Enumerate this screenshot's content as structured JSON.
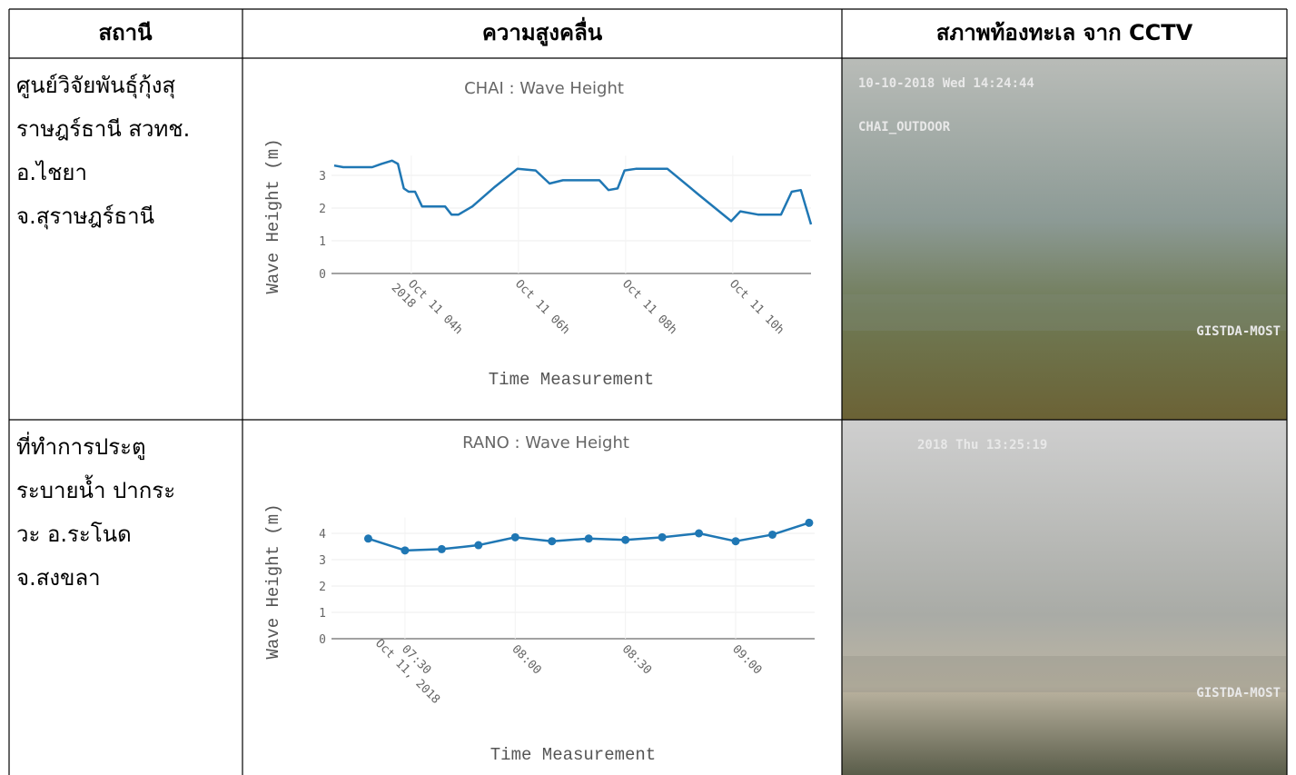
{
  "table": {
    "header": [
      "สถานี",
      "ความสูงคลื่น",
      "สภาพท้องทะเล จาก CCTV"
    ],
    "rows": [
      {
        "station": [
          "ศูนย์วิจัยพันธุ์กุ้งสุ",
          "ราษฎร์ธานี สวทช.",
          "อ.ไชยา",
          "จ.สุราษฎร์ธานี"
        ],
        "chart": {
          "type": "line",
          "title": "CHAI : Wave Height",
          "y_label": "Wave Height (m)",
          "x_label": "Time Measurement",
          "x": [
            2.56,
            2.73,
            3.27,
            3.44,
            3.64,
            3.75,
            3.86,
            3.95,
            4.07,
            4.2,
            4.63,
            4.75,
            4.88,
            5.14,
            5.56,
            5.98,
            6.32,
            6.58,
            6.83,
            7.51,
            7.68,
            7.85,
            7.98,
            8.19,
            8.78,
            9.37,
            9.97,
            10.14,
            10.47,
            10.9,
            11.1,
            11.27,
            11.46
          ],
          "series": [
            {
              "name": "CHAI",
              "color": "#1f77b4",
              "values": [
                3.3,
                3.25,
                3.25,
                3.35,
                3.45,
                3.35,
                2.6,
                2.5,
                2.5,
                2.05,
                2.05,
                1.8,
                1.8,
                2.05,
                2.65,
                3.2,
                3.15,
                2.75,
                2.85,
                2.85,
                2.55,
                2.6,
                3.15,
                3.2,
                3.2,
                2.4,
                1.6,
                1.9,
                1.8,
                1.8,
                2.5,
                2.55,
                1.5
              ]
            }
          ],
          "xlim": [
            2.51,
            11.46
          ],
          "ylim": [
            0,
            3.6
          ],
          "yticks": [
            0,
            1,
            2,
            3
          ],
          "xticks": [
            {
              "value": 4,
              "label": "Oct 11 04h",
              "sublabel": "2018"
            },
            {
              "value": 6,
              "label": "Oct 11 06h"
            },
            {
              "value": 8,
              "label": "Oct 11 08h"
            },
            {
              "value": 10,
              "label": "Oct 11 10h"
            }
          ],
          "grid": true,
          "markers": false
        },
        "cctv": {
          "timestamp": "10-10-2018 Wed 14:24:44",
          "camera": "CHAI_OUTDOOR",
          "watermark": "GISTDA-MOST",
          "tone": "#7d8a78"
        }
      },
      {
        "station": [
          "ที่ทำการประตู",
          "ระบายน้ำ ปากระ",
          "วะ อ.ระโนด",
          "จ.สงขลา"
        ],
        "chart": {
          "type": "line",
          "title": "RANO : Wave Height",
          "y_label": "Wave Height (m)",
          "x_label": "Time Measurement",
          "x": [
            440,
            450,
            460,
            470,
            480,
            490,
            500,
            510,
            520,
            530,
            540,
            550,
            560
          ],
          "series": [
            {
              "name": "RANO",
              "color": "#1f77b4",
              "values": [
                3.8,
                3.35,
                3.4,
                3.55,
                3.85,
                3.7,
                3.8,
                3.75,
                3.85,
                4.0,
                3.7,
                3.95,
                4.4
              ]
            }
          ],
          "xlim": [
            430,
            561.5
          ],
          "ylim": [
            0,
            4.6
          ],
          "yticks": [
            0,
            1,
            2,
            3,
            4
          ],
          "xticks": [
            {
              "value": 450,
              "label": "07:30",
              "sublabel": "Oct 11, 2018"
            },
            {
              "value": 480,
              "label": "08:00"
            },
            {
              "value": 510,
              "label": "08:30"
            },
            {
              "value": 540,
              "label": "09:00"
            }
          ],
          "grid": true,
          "markers": true
        },
        "cctv": {
          "timestamp": "2018 Thu 13:25:19",
          "watermark": "GISTDA-MOST",
          "tone": "#8e8e88"
        }
      }
    ]
  }
}
